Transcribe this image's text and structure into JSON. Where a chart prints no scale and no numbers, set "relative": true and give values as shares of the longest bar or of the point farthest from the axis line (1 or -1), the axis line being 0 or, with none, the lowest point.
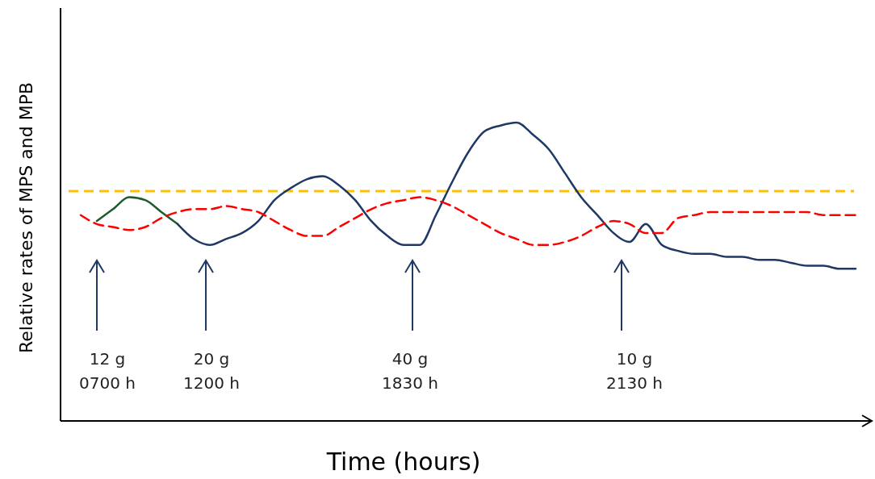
{
  "chart_data": {
    "type": "line",
    "relative": true,
    "ylabel": "Relative rates of MPS and MPB",
    "xlabel": "Time (hours)",
    "categories": [
      null,
      null,
      null,
      null,
      null,
      null,
      null,
      null,
      null,
      null,
      null,
      null,
      null,
      null,
      null,
      null,
      null,
      null,
      null,
      null,
      null,
      null,
      null,
      null,
      null,
      null,
      null,
      null,
      null,
      null,
      null,
      null,
      null,
      null,
      null,
      null,
      null,
      null,
      null,
      null,
      null,
      null,
      null,
      null,
      null,
      null,
      null,
      null,
      null
    ],
    "series": [
      {
        "color": "#1e5c2e",
        "values": [
          null,
          0.67,
          0.71,
          0.75,
          0.74,
          0.7,
          0.66,
          null,
          null,
          null,
          null,
          null,
          null,
          null,
          null,
          null,
          null,
          null,
          null,
          null,
          null,
          null,
          null,
          null,
          null,
          null,
          null,
          null,
          null,
          null,
          null,
          null,
          null,
          null,
          null,
          null,
          null,
          null,
          null,
          null,
          null,
          null,
          null,
          null,
          null,
          null,
          null,
          null,
          null
        ]
      },
      {
        "color": "#1f3864",
        "values": [
          null,
          null,
          null,
          null,
          null,
          null,
          0.66,
          0.61,
          0.59,
          0.61,
          0.63,
          0.67,
          0.74,
          0.78,
          0.81,
          0.82,
          0.79,
          0.74,
          0.67,
          0.62,
          0.59,
          0.59,
          0.69,
          0.8,
          0.9,
          0.97,
          0.99,
          1,
          0.96,
          0.91,
          0.83,
          0.75,
          0.69,
          0.63,
          0.6,
          0.66,
          0.59,
          0.57,
          0.56,
          0.56,
          0.55,
          0.55,
          0.54,
          0.54,
          0.53,
          0.52,
          0.52,
          0.51,
          0.51
        ]
      },
      {
        "color": "#ff0000",
        "line_style": "dashed",
        "values": [
          0.69,
          0.66,
          0.65,
          0.64,
          0.65,
          0.68,
          0.7,
          0.71,
          0.71,
          0.72,
          0.71,
          0.7,
          0.67,
          0.64,
          0.62,
          0.62,
          0.65,
          0.68,
          0.71,
          0.73,
          0.74,
          0.75,
          0.74,
          0.72,
          0.69,
          0.66,
          0.63,
          0.61,
          0.59,
          0.59,
          0.6,
          0.62,
          0.65,
          0.67,
          0.66,
          0.63,
          0.63,
          0.68,
          0.69,
          0.7,
          0.7,
          0.7,
          0.7,
          0.7,
          0.7,
          0.7,
          0.69,
          0.69,
          0.69
        ]
      }
    ],
    "ref_lines": [
      {
        "axis": "y",
        "value": 0.77,
        "color": "#ffc000",
        "line_style": "dashed"
      }
    ],
    "annotations": [
      "12 g\n0700 h",
      "20 g\n1200 h",
      "40 g\n1830 h",
      "10 g\n2130 h"
    ],
    "line_style": "solid"
  }
}
